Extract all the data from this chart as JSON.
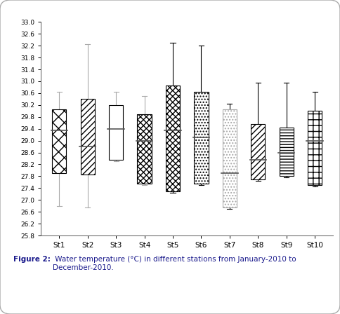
{
  "stations": [
    "St1",
    "St2",
    "St3",
    "St4",
    "St5",
    "St6",
    "St7",
    "St8",
    "St9",
    "St10"
  ],
  "boxes": [
    {
      "whisker_low": 26.8,
      "q1": 27.9,
      "median": 29.35,
      "q3": 30.05,
      "whisker_high": 30.65
    },
    {
      "whisker_low": 26.75,
      "q1": 27.85,
      "median": 28.8,
      "q3": 30.4,
      "whisker_high": 32.25
    },
    {
      "whisker_low": 28.3,
      "q1": 28.35,
      "median": 29.4,
      "q3": 30.2,
      "whisker_high": 30.65
    },
    {
      "whisker_low": 27.5,
      "q1": 27.55,
      "median": 29.0,
      "q3": 29.9,
      "whisker_high": 30.5
    },
    {
      "whisker_low": 27.25,
      "q1": 27.3,
      "median": 29.35,
      "q3": 30.85,
      "whisker_high": 32.3
    },
    {
      "whisker_low": 27.5,
      "q1": 27.55,
      "median": 29.1,
      "q3": 30.65,
      "whisker_high": 32.2
    },
    {
      "whisker_low": 26.7,
      "q1": 26.75,
      "median": 27.9,
      "q3": 30.05,
      "whisker_high": 30.25
    },
    {
      "whisker_low": 27.65,
      "q1": 27.7,
      "median": 28.35,
      "q3": 29.55,
      "whisker_high": 30.95
    },
    {
      "whisker_low": 27.75,
      "q1": 27.8,
      "median": 28.6,
      "q3": 29.45,
      "whisker_high": 30.95
    },
    {
      "whisker_low": 27.45,
      "q1": 27.5,
      "median": 29.0,
      "q3": 30.0,
      "whisker_high": 30.65
    }
  ],
  "hatch_list": [
    "xx",
    "////",
    "",
    "xxxx",
    "xxxx",
    "....",
    "....",
    "////",
    "----",
    "++"
  ],
  "hatch_colors": [
    "black",
    "black",
    "black",
    "black",
    "black",
    "black",
    "lightgray",
    "black",
    "black",
    "black"
  ],
  "whisker_colors": [
    "gray",
    "gray",
    "gray",
    "gray",
    "black",
    "black",
    "black",
    "black",
    "black",
    "black"
  ],
  "ylim": [
    25.8,
    33.0
  ],
  "yticks": [
    25.8,
    26.2,
    26.6,
    27.0,
    27.4,
    27.8,
    28.2,
    28.6,
    29.0,
    29.4,
    29.8,
    30.2,
    30.6,
    31.0,
    31.4,
    31.8,
    32.2,
    32.6,
    33.0
  ],
  "caption_bold": "Figure 2:",
  "caption_rest": " Water temperature (°C) in different stations from January-2010 to December-2010.",
  "bg_color": "#ffffff",
  "box_width": 0.5,
  "figure_size": [
    4.84,
    4.48
  ]
}
